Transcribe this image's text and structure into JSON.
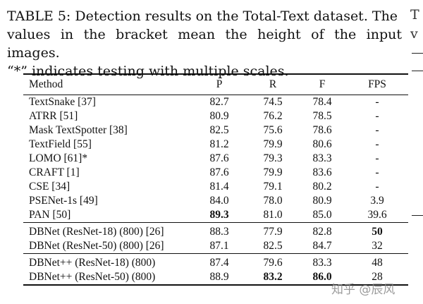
{
  "caption": {
    "line1": "TABLE 5: Detection results on the Total-Text dataset. The",
    "line2": "values in the bracket mean the height of the input images.",
    "line3": "“*” indicates testing with multiple scales."
  },
  "side_text": {
    "line1": "T",
    "line2": "v"
  },
  "table": {
    "headers": [
      "Method",
      "P",
      "R",
      "F",
      "FPS"
    ],
    "groups": [
      [
        {
          "method": "TextSnake [37]",
          "p": "82.7",
          "r": "74.5",
          "f": "78.4",
          "fps": "-"
        },
        {
          "method": "ATRR [51]",
          "p": "80.9",
          "r": "76.2",
          "f": "78.5",
          "fps": "-"
        },
        {
          "method": "Mask TextSpotter [38]",
          "p": "82.5",
          "r": "75.6",
          "f": "78.6",
          "fps": "-"
        },
        {
          "method": "TextField [55]",
          "p": "81.2",
          "r": "79.9",
          "f": "80.6",
          "fps": "-"
        },
        {
          "method": "LOMO [61]*",
          "p": "87.6",
          "r": "79.3",
          "f": "83.3",
          "fps": "-"
        },
        {
          "method": "CRAFT [1]",
          "p": "87.6",
          "r": "79.9",
          "f": "83.6",
          "fps": "-"
        },
        {
          "method": "CSE [34]",
          "p": "81.4",
          "r": "79.1",
          "f": "80.2",
          "fps": "-"
        },
        {
          "method": "PSENet-1s [49]",
          "p": "84.0",
          "r": "78.0",
          "f": "80.9",
          "fps": "3.9"
        },
        {
          "method": "PAN [50]",
          "p": "89.3",
          "r": "81.0",
          "f": "85.0",
          "fps": "39.6",
          "bold": [
            "p"
          ]
        }
      ],
      [
        {
          "method": "DBNet (ResNet-18) (800) [26]",
          "p": "88.3",
          "r": "77.9",
          "f": "82.8",
          "fps": "50",
          "bold": [
            "fps"
          ]
        },
        {
          "method": "DBNet (ResNet-50) (800) [26]",
          "p": "87.1",
          "r": "82.5",
          "f": "84.7",
          "fps": "32"
        }
      ],
      [
        {
          "method": "DBNet++ (ResNet-18) (800)",
          "p": "87.4",
          "r": "79.6",
          "f": "83.3",
          "fps": "48"
        },
        {
          "method": "DBNet++ (ResNet-50) (800)",
          "p": "88.9",
          "r": "83.2",
          "f": "86.0",
          "fps": "28",
          "bold": [
            "r",
            "f"
          ]
        }
      ]
    ]
  },
  "watermark": "知乎 @辰风"
}
